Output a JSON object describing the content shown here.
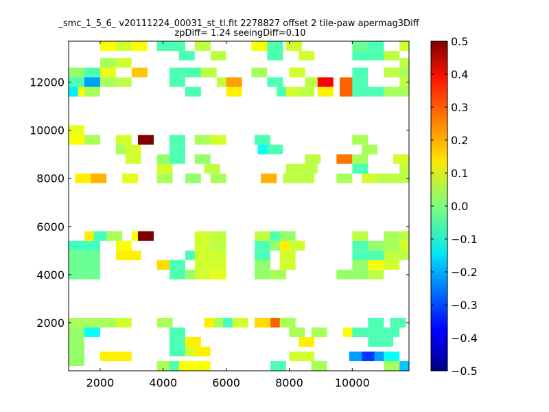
{
  "chart_data": {
    "type": "heatmap",
    "title": "_smc_1_5_6_ v20111224_00031_st_tl.fit 2278827 offset 2 tile-paw apermag3Diff",
    "subtitle": "zpDiff= 1.24 seeingDiff=0.10",
    "xlabel": "",
    "ylabel": "",
    "xlim": [
      1000,
      11800
    ],
    "ylim": [
      0,
      13700
    ],
    "x_ticks": [
      2000,
      4000,
      6000,
      8000,
      10000
    ],
    "y_ticks": [
      2000,
      4000,
      6000,
      8000,
      10000,
      12000
    ],
    "x_tick_labels": [
      "2000",
      "4000",
      "6000",
      "8000",
      "10000"
    ],
    "y_tick_labels": [
      "2000",
      "4000",
      "6000",
      "8000",
      "10000",
      "12000"
    ],
    "colorbar": {
      "colormap": "jet",
      "vmin": -0.5,
      "vmax": 0.5,
      "ticks": [
        0.5,
        0.4,
        0.3,
        0.2,
        0.1,
        0.0,
        -0.1,
        -0.2,
        -0.3,
        -0.4,
        -0.5
      ],
      "tick_labels": [
        "0.5",
        "0.4",
        "0.3",
        "0.2",
        "0.1",
        "0.0",
        "−0.1",
        "−0.2",
        "−0.3",
        "−0.4",
        "−0.5"
      ]
    },
    "cell_size": [
      500,
      400
    ],
    "grid": false,
    "cells": [
      {
        "x": 1000,
        "y": 200,
        "v": 0.02
      },
      {
        "x": 1000,
        "y": 600,
        "v": 0.02
      },
      {
        "x": 1000,
        "y": 1000,
        "v": 0.02
      },
      {
        "x": 1000,
        "y": 1400,
        "v": 0.02
      },
      {
        "x": 1000,
        "y": 1800,
        "v": 0.04
      },
      {
        "x": 1500,
        "y": 1800,
        "v": 0.04
      },
      {
        "x": 1500,
        "y": 1400,
        "v": -0.12
      },
      {
        "x": 2000,
        "y": 1800,
        "v": 0.04
      },
      {
        "x": 2500,
        "y": 1800,
        "v": 0.08
      },
      {
        "x": 2000,
        "y": 400,
        "v": 0.14
      },
      {
        "x": 2500,
        "y": 400,
        "v": 0.14
      },
      {
        "x": 3800,
        "y": 1800,
        "v": 0.04
      },
      {
        "x": 4200,
        "y": 1400,
        "v": -0.05
      },
      {
        "x": 4200,
        "y": 1000,
        "v": -0.05
      },
      {
        "x": 4200,
        "y": 600,
        "v": -0.05
      },
      {
        "x": 3800,
        "y": 0,
        "v": 0.04
      },
      {
        "x": 4200,
        "y": 0,
        "v": -0.05
      },
      {
        "x": 4500,
        "y": 0,
        "v": 0.12
      },
      {
        "x": 5000,
        "y": 0,
        "v": 0.12
      },
      {
        "x": 4700,
        "y": 600,
        "v": 0.08
      },
      {
        "x": 5000,
        "y": 600,
        "v": 0.14
      },
      {
        "x": 4700,
        "y": 1000,
        "v": 0.14
      },
      {
        "x": 5300,
        "y": 1800,
        "v": 0.14
      },
      {
        "x": 5600,
        "y": 1800,
        "v": 0.04
      },
      {
        "x": 5900,
        "y": 1800,
        "v": -0.06
      },
      {
        "x": 6200,
        "y": 1800,
        "v": 0.08
      },
      {
        "x": 6900,
        "y": 1800,
        "v": 0.16
      },
      {
        "x": 7400,
        "y": 1800,
        "v": 0.28
      },
      {
        "x": 7700,
        "y": 1800,
        "v": 0.04
      },
      {
        "x": 8000,
        "y": 1400,
        "v": 0.04
      },
      {
        "x": 8300,
        "y": 1000,
        "v": 0.14
      },
      {
        "x": 8700,
        "y": 1400,
        "v": 0.04
      },
      {
        "x": 8000,
        "y": 400,
        "v": 0.08
      },
      {
        "x": 8300,
        "y": 400,
        "v": 0.08
      },
      {
        "x": 8700,
        "y": 0,
        "v": 0.04
      },
      {
        "x": 7400,
        "y": 0,
        "v": -0.05
      },
      {
        "x": 9700,
        "y": 1400,
        "v": 0.12
      },
      {
        "x": 10000,
        "y": 1400,
        "v": -0.05
      },
      {
        "x": 10500,
        "y": 1400,
        "v": -0.05
      },
      {
        "x": 11000,
        "y": 1400,
        "v": -0.05
      },
      {
        "x": 10500,
        "y": 1800,
        "v": -0.05
      },
      {
        "x": 11200,
        "y": 1800,
        "v": -0.05
      },
      {
        "x": 10500,
        "y": 1000,
        "v": -0.05
      },
      {
        "x": 10800,
        "y": 1000,
        "v": -0.05
      },
      {
        "x": 9900,
        "y": 400,
        "v": -0.22
      },
      {
        "x": 10300,
        "y": 400,
        "v": -0.32
      },
      {
        "x": 10700,
        "y": 400,
        "v": -0.22
      },
      {
        "x": 11000,
        "y": 400,
        "v": -0.12
      },
      {
        "x": 11000,
        "y": 0,
        "v": 0.04
      },
      {
        "x": 11500,
        "y": 0,
        "v": -0.18
      },
      {
        "x": 1000,
        "y": 3800,
        "v": -0.02
      },
      {
        "x": 1500,
        "y": 3800,
        "v": -0.02
      },
      {
        "x": 1000,
        "y": 4200,
        "v": -0.02
      },
      {
        "x": 1500,
        "y": 4200,
        "v": -0.02
      },
      {
        "x": 1000,
        "y": 4600,
        "v": -0.02
      },
      {
        "x": 1500,
        "y": 4600,
        "v": -0.02
      },
      {
        "x": 1000,
        "y": 5000,
        "v": -0.06
      },
      {
        "x": 1500,
        "y": 5000,
        "v": -0.06
      },
      {
        "x": 1500,
        "y": 5400,
        "v": 0.14
      },
      {
        "x": 1800,
        "y": 5400,
        "v": -0.06
      },
      {
        "x": 2200,
        "y": 5400,
        "v": 0.04
      },
      {
        "x": 2500,
        "y": 5000,
        "v": 0.12
      },
      {
        "x": 2800,
        "y": 4600,
        "v": 0.14
      },
      {
        "x": 2500,
        "y": 4600,
        "v": 0.14
      },
      {
        "x": 3000,
        "y": 5400,
        "v": 0.12
      },
      {
        "x": 3200,
        "y": 5400,
        "v": 0.5
      },
      {
        "x": 3800,
        "y": 4200,
        "v": 0.16
      },
      {
        "x": 4200,
        "y": 4200,
        "v": -0.05
      },
      {
        "x": 4200,
        "y": 3800,
        "v": -0.05
      },
      {
        "x": 4700,
        "y": 3800,
        "v": 0.02
      },
      {
        "x": 5000,
        "y": 3800,
        "v": 0.08
      },
      {
        "x": 5500,
        "y": 3800,
        "v": 0.1
      },
      {
        "x": 5000,
        "y": 4200,
        "v": 0.08
      },
      {
        "x": 5500,
        "y": 4200,
        "v": 0.08
      },
      {
        "x": 4700,
        "y": 4600,
        "v": -0.05
      },
      {
        "x": 5000,
        "y": 4600,
        "v": 0.08
      },
      {
        "x": 5500,
        "y": 4600,
        "v": 0.08
      },
      {
        "x": 5000,
        "y": 5000,
        "v": 0.08
      },
      {
        "x": 5500,
        "y": 5000,
        "v": 0.06
      },
      {
        "x": 5000,
        "y": 5400,
        "v": 0.08
      },
      {
        "x": 5500,
        "y": 5400,
        "v": 0.06
      },
      {
        "x": 6900,
        "y": 3800,
        "v": 0.02
      },
      {
        "x": 7400,
        "y": 3800,
        "v": 0.04
      },
      {
        "x": 6900,
        "y": 4200,
        "v": 0.02
      },
      {
        "x": 7700,
        "y": 4200,
        "v": 0.08
      },
      {
        "x": 7700,
        "y": 4600,
        "v": 0.08
      },
      {
        "x": 6900,
        "y": 4600,
        "v": -0.05
      },
      {
        "x": 6900,
        "y": 5000,
        "v": -0.05
      },
      {
        "x": 7400,
        "y": 5000,
        "v": 0.02
      },
      {
        "x": 7700,
        "y": 5000,
        "v": 0.14
      },
      {
        "x": 8000,
        "y": 5000,
        "v": 0.08
      },
      {
        "x": 6900,
        "y": 5400,
        "v": 0.06
      },
      {
        "x": 7400,
        "y": 5400,
        "v": -0.05
      },
      {
        "x": 7700,
        "y": 5400,
        "v": 0.02
      },
      {
        "x": 9500,
        "y": 3800,
        "v": 0.02
      },
      {
        "x": 10000,
        "y": 3800,
        "v": 0.02
      },
      {
        "x": 10500,
        "y": 3800,
        "v": 0.06
      },
      {
        "x": 10000,
        "y": 4200,
        "v": 0.02
      },
      {
        "x": 10500,
        "y": 4200,
        "v": 0.12
      },
      {
        "x": 11000,
        "y": 4200,
        "v": 0.08
      },
      {
        "x": 10000,
        "y": 4600,
        "v": -0.05
      },
      {
        "x": 10500,
        "y": 4600,
        "v": -0.05
      },
      {
        "x": 11000,
        "y": 4600,
        "v": 0.06
      },
      {
        "x": 11500,
        "y": 4600,
        "v": 0.06
      },
      {
        "x": 10000,
        "y": 5000,
        "v": -0.05
      },
      {
        "x": 10500,
        "y": 5000,
        "v": 0.02
      },
      {
        "x": 11000,
        "y": 5000,
        "v": 0.04
      },
      {
        "x": 11500,
        "y": 5000,
        "v": 0.08
      },
      {
        "x": 10000,
        "y": 5400,
        "v": 0.06
      },
      {
        "x": 11000,
        "y": 5400,
        "v": 0.04
      },
      {
        "x": 11500,
        "y": 5400,
        "v": 0.06
      },
      {
        "x": 1200,
        "y": 7800,
        "v": 0.14
      },
      {
        "x": 1700,
        "y": 7800,
        "v": 0.2
      },
      {
        "x": 2700,
        "y": 7800,
        "v": 0.1
      },
      {
        "x": 1000,
        "y": 9400,
        "v": 0.12
      },
      {
        "x": 1000,
        "y": 9800,
        "v": 0.1
      },
      {
        "x": 1500,
        "y": 9400,
        "v": 0.04
      },
      {
        "x": 2500,
        "y": 9400,
        "v": 0.08
      },
      {
        "x": 2500,
        "y": 9000,
        "v": 0.04
      },
      {
        "x": 2800,
        "y": 9000,
        "v": 0.08
      },
      {
        "x": 2800,
        "y": 8600,
        "v": 0.08
      },
      {
        "x": 3200,
        "y": 9400,
        "v": 0.5
      },
      {
        "x": 3800,
        "y": 7800,
        "v": 0.04
      },
      {
        "x": 3800,
        "y": 8200,
        "v": 0.08
      },
      {
        "x": 3800,
        "y": 8600,
        "v": 0.02
      },
      {
        "x": 4200,
        "y": 8600,
        "v": -0.05
      },
      {
        "x": 4200,
        "y": 9000,
        "v": -0.05
      },
      {
        "x": 4200,
        "y": 9400,
        "v": -0.05
      },
      {
        "x": 5000,
        "y": 9400,
        "v": 0.04
      },
      {
        "x": 5500,
        "y": 9400,
        "v": 0.08
      },
      {
        "x": 5000,
        "y": 8600,
        "v": 0.02
      },
      {
        "x": 5300,
        "y": 8200,
        "v": 0.06
      },
      {
        "x": 4700,
        "y": 7800,
        "v": 0.02
      },
      {
        "x": 5500,
        "y": 7800,
        "v": 0.04
      },
      {
        "x": 7000,
        "y": 9000,
        "v": -0.12
      },
      {
        "x": 7300,
        "y": 9000,
        "v": -0.05
      },
      {
        "x": 6900,
        "y": 9400,
        "v": -0.05
      },
      {
        "x": 7100,
        "y": 7800,
        "v": 0.2
      },
      {
        "x": 7800,
        "y": 7800,
        "v": 0.06
      },
      {
        "x": 8300,
        "y": 7800,
        "v": 0.06
      },
      {
        "x": 7900,
        "y": 8200,
        "v": 0.06
      },
      {
        "x": 8400,
        "y": 8200,
        "v": 0.06
      },
      {
        "x": 8500,
        "y": 8600,
        "v": 0.06
      },
      {
        "x": 9500,
        "y": 7800,
        "v": 0.04
      },
      {
        "x": 9500,
        "y": 8600,
        "v": 0.26
      },
      {
        "x": 10000,
        "y": 8600,
        "v": 0.04
      },
      {
        "x": 10000,
        "y": 9400,
        "v": 0.04
      },
      {
        "x": 10300,
        "y": 9000,
        "v": 0.04
      },
      {
        "x": 10000,
        "y": 8200,
        "v": -0.05
      },
      {
        "x": 10300,
        "y": 7800,
        "v": 0.08
      },
      {
        "x": 10800,
        "y": 7800,
        "v": 0.06
      },
      {
        "x": 11300,
        "y": 7800,
        "v": 0.06
      },
      {
        "x": 11300,
        "y": 8600,
        "v": 0.08
      },
      {
        "x": 11500,
        "y": 8200,
        "v": 0.06
      },
      {
        "x": 1000,
        "y": 11400,
        "v": -0.14
      },
      {
        "x": 1300,
        "y": 11400,
        "v": 0.12
      },
      {
        "x": 1500,
        "y": 11400,
        "v": 0.04
      },
      {
        "x": 1000,
        "y": 11800,
        "v": -0.05
      },
      {
        "x": 1500,
        "y": 11800,
        "v": -0.22
      },
      {
        "x": 1000,
        "y": 12200,
        "v": 0.02
      },
      {
        "x": 1500,
        "y": 12200,
        "v": -0.05
      },
      {
        "x": 2000,
        "y": 12600,
        "v": 0.04
      },
      {
        "x": 2000,
        "y": 11800,
        "v": 0.04
      },
      {
        "x": 2500,
        "y": 11800,
        "v": 0.06
      },
      {
        "x": 2000,
        "y": 12200,
        "v": 0.1
      },
      {
        "x": 2500,
        "y": 12600,
        "v": 0.08
      },
      {
        "x": 3000,
        "y": 12200,
        "v": 0.18
      },
      {
        "x": 2000,
        "y": 13300,
        "v": 0.12
      },
      {
        "x": 2500,
        "y": 13300,
        "v": 0.08
      },
      {
        "x": 3000,
        "y": 13300,
        "v": 0.12
      },
      {
        "x": 3800,
        "y": 13300,
        "v": -0.05
      },
      {
        "x": 4200,
        "y": 13300,
        "v": -0.05
      },
      {
        "x": 4500,
        "y": 12900,
        "v": -0.05
      },
      {
        "x": 4200,
        "y": 12200,
        "v": -0.05
      },
      {
        "x": 4700,
        "y": 12200,
        "v": -0.05
      },
      {
        "x": 4200,
        "y": 11800,
        "v": -0.05
      },
      {
        "x": 4700,
        "y": 11400,
        "v": -0.05
      },
      {
        "x": 5000,
        "y": 13300,
        "v": 0.06
      },
      {
        "x": 5500,
        "y": 12900,
        "v": 0.06
      },
      {
        "x": 5200,
        "y": 12200,
        "v": 0.06
      },
      {
        "x": 5700,
        "y": 11800,
        "v": 0.06
      },
      {
        "x": 6000,
        "y": 11800,
        "v": 0.22
      },
      {
        "x": 6000,
        "y": 11400,
        "v": 0.14
      },
      {
        "x": 6800,
        "y": 13300,
        "v": 0.12
      },
      {
        "x": 7300,
        "y": 13300,
        "v": -0.05
      },
      {
        "x": 7300,
        "y": 12900,
        "v": -0.05
      },
      {
        "x": 6800,
        "y": 12200,
        "v": 0.04
      },
      {
        "x": 7300,
        "y": 11800,
        "v": -0.05
      },
      {
        "x": 7600,
        "y": 11400,
        "v": -0.05
      },
      {
        "x": 7900,
        "y": 13300,
        "v": 0.08
      },
      {
        "x": 8300,
        "y": 12900,
        "v": 0.08
      },
      {
        "x": 8000,
        "y": 12200,
        "v": 0.08
      },
      {
        "x": 7900,
        "y": 11400,
        "v": 0.08
      },
      {
        "x": 8300,
        "y": 11400,
        "v": 0.06
      },
      {
        "x": 8500,
        "y": 11800,
        "v": 0.06
      },
      {
        "x": 8900,
        "y": 11800,
        "v": 0.38
      },
      {
        "x": 8900,
        "y": 11400,
        "v": 0.14
      },
      {
        "x": 9600,
        "y": 11800,
        "v": 0.28
      },
      {
        "x": 9600,
        "y": 11400,
        "v": 0.28
      },
      {
        "x": 10000,
        "y": 13300,
        "v": -0.02
      },
      {
        "x": 10500,
        "y": 13300,
        "v": -0.05
      },
      {
        "x": 10000,
        "y": 12900,
        "v": -0.05
      },
      {
        "x": 10500,
        "y": 12900,
        "v": -0.05
      },
      {
        "x": 10000,
        "y": 12200,
        "v": -0.05
      },
      {
        "x": 10000,
        "y": 11800,
        "v": -0.05
      },
      {
        "x": 10000,
        "y": 11400,
        "v": -0.05
      },
      {
        "x": 10500,
        "y": 11400,
        "v": -0.05
      },
      {
        "x": 11000,
        "y": 11400,
        "v": 0.04
      },
      {
        "x": 11500,
        "y": 11400,
        "v": 0.04
      },
      {
        "x": 11000,
        "y": 12200,
        "v": 0.06
      },
      {
        "x": 11500,
        "y": 12200,
        "v": 0.04
      },
      {
        "x": 11500,
        "y": 12600,
        "v": 0.06
      },
      {
        "x": 11500,
        "y": 13300,
        "v": 0.08
      },
      {
        "x": 11000,
        "y": 12900,
        "v": 0.06
      },
      {
        "x": 11500,
        "y": 11800,
        "v": 0.06
      }
    ]
  }
}
